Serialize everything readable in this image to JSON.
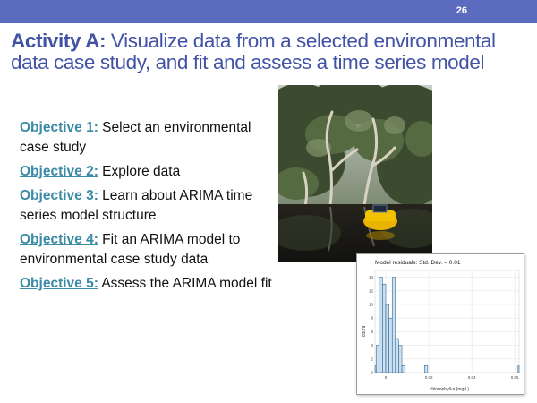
{
  "slide": {
    "number": "26",
    "title_bold": "Activity A:",
    "title_rest": " Visualize data from a selected environmental data case study, and fit and assess a time series model",
    "header_color": "#5b6bbd",
    "title_color": "#4253a6",
    "link_color": "#3b8aa6"
  },
  "objectives": [
    {
      "label": "Objective 1:",
      "text": " Select an environmental case study"
    },
    {
      "label": "Objective 2:",
      "text": " Explore data"
    },
    {
      "label": "Objective 3:",
      "text": " Learn about ARIMA time series model structure"
    },
    {
      "label": "Objective 4:",
      "text": " Fit an ARIMA model to environmental case study data"
    },
    {
      "label": "Objective 5:",
      "text": " Assess the ARIMA model fit"
    }
  ],
  "photo": {
    "icon": "lake-buoy-photo"
  },
  "chart_data": {
    "type": "bar",
    "title": "Model residuals: Std. Dev. = 0.01",
    "xlabel": "chlorophyll-a (mg/L)",
    "ylabel": "count",
    "xlim": [
      -0.005,
      0.062
    ],
    "ylim": [
      0,
      15
    ],
    "x_ticks": [
      "0",
      "0.02",
      "0.04",
      "0.06"
    ],
    "x_tick_values": [
      0,
      0.02,
      0.04,
      0.06
    ],
    "y_ticks": [
      "0",
      "2",
      "4",
      "6",
      "8",
      "10",
      "12",
      "14"
    ],
    "y_tick_values": [
      0,
      2,
      4,
      6,
      8,
      10,
      12,
      14
    ],
    "bin_width": 0.0015,
    "bin_starts": [
      -0.006,
      -0.0045,
      -0.003,
      -0.0015,
      0,
      0.0015,
      0.003,
      0.0045,
      0.006,
      0.0075,
      0.009,
      0.0105,
      0.012,
      0.0135,
      0.015,
      0.0165,
      0.018,
      0.0195,
      0.021,
      0.0225
    ],
    "counts": [
      1,
      4,
      14,
      13,
      10,
      8,
      14,
      5,
      4,
      1,
      0,
      0,
      0,
      0,
      0,
      0,
      1,
      0,
      0,
      0
    ],
    "extra_bins": [
      {
        "start": 0.0615,
        "count": 1
      }
    ],
    "bar_color": "#c9e1f3",
    "bar_stroke": "#1f4e79",
    "grid": true
  }
}
